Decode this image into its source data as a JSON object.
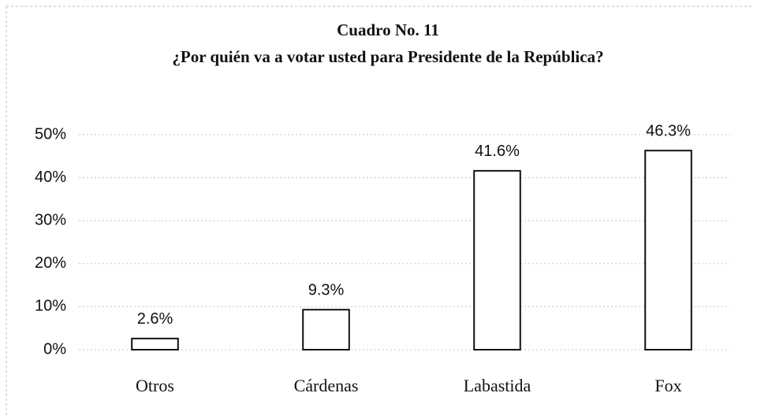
{
  "chart_data": {
    "type": "bar",
    "title": "Cuadro No. 11",
    "subtitle": "¿Por quién va a votar usted para Presidente de la República?",
    "categories": [
      "Otros",
      "Cárdenas",
      "Labastida",
      "Fox"
    ],
    "values": [
      2.6,
      9.3,
      41.6,
      46.3
    ],
    "value_labels": [
      "2.6%",
      "9.3%",
      "41.6%",
      "46.3%"
    ],
    "color": "#ffffff",
    "ylim": [
      0,
      50
    ],
    "yticks": [
      {
        "value": 0,
        "label": "0%"
      },
      {
        "value": 10,
        "label": "10%"
      },
      {
        "value": 20,
        "label": "20%"
      },
      {
        "value": 30,
        "label": "30%"
      },
      {
        "value": 40,
        "label": "40%"
      },
      {
        "value": 50,
        "label": "50%"
      }
    ],
    "grid": true
  }
}
